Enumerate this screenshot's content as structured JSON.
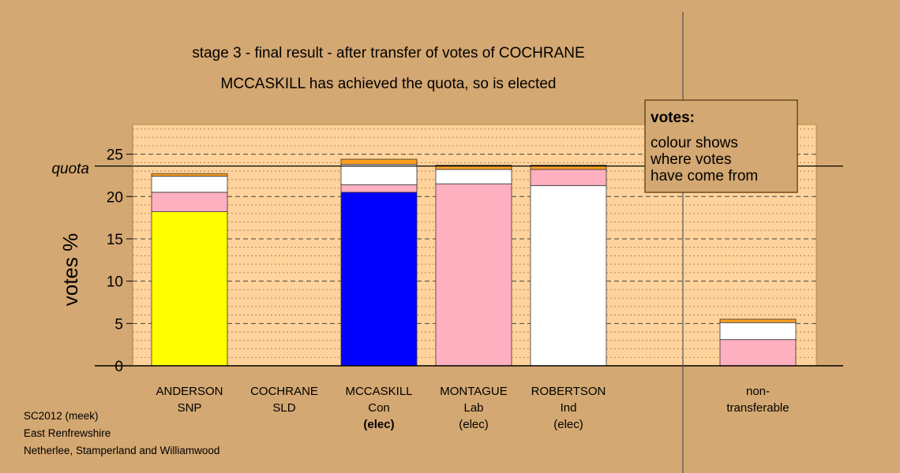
{
  "chart_data": {
    "type": "bar",
    "stacked": true,
    "title_line1": "stage 3 - final result - after transfer of votes of COCHRANE",
    "title_line2": "MCCASKILL has achieved the quota, so is elected",
    "ylabel": "votes %",
    "ylim": [
      0,
      28.5
    ],
    "yticks": [
      0,
      5,
      10,
      15,
      20,
      25
    ],
    "quota": 23.6,
    "quota_label": "quota",
    "grid": "dashed-horizontal",
    "legend": {
      "placement": "top-right",
      "title": "votes:",
      "lines": [
        "colour shows",
        "where votes",
        "have come from"
      ]
    },
    "categories": [
      {
        "name": "ANDERSON",
        "party": "SNP",
        "status": ""
      },
      {
        "name": "COCHRANE",
        "party": "SLD",
        "status": ""
      },
      {
        "name": "MCCASKILL",
        "party": "Con",
        "status": "(elec)"
      },
      {
        "name": "MONTAGUE",
        "party": "Lab",
        "status": "(elec)"
      },
      {
        "name": "ROBERTSON",
        "party": "Ind",
        "status": "(elec)"
      },
      {
        "name": "",
        "party": "",
        "status": ""
      },
      {
        "name": "non-",
        "party": "transferable",
        "status": ""
      }
    ],
    "stacks": [
      [
        {
          "value": 18.2,
          "color": "#ffff00"
        },
        {
          "value": 2.3,
          "color": "#ffb0c0"
        },
        {
          "value": 1.9,
          "color": "#ffffff"
        },
        {
          "value": 0.3,
          "color": "#ffa020"
        }
      ],
      [],
      [
        {
          "value": 20.5,
          "color": "#0000ff"
        },
        {
          "value": 0.9,
          "color": "#ffb0c0"
        },
        {
          "value": 2.4,
          "color": "#ffffff"
        },
        {
          "value": 0.6,
          "color": "#ffa020"
        }
      ],
      [
        {
          "value": 21.5,
          "color": "#ffb0c0"
        },
        {
          "value": 1.7,
          "color": "#ffffff"
        },
        {
          "value": 0.5,
          "color": "#ffa020"
        }
      ],
      [
        {
          "value": 21.3,
          "color": "#ffffff"
        },
        {
          "value": 1.9,
          "color": "#ffb0c0"
        },
        {
          "value": 0.5,
          "color": "#ffa020"
        }
      ],
      [],
      [
        {
          "value": 3.1,
          "color": "#ffb0c0"
        },
        {
          "value": 2.0,
          "color": "#ffffff"
        },
        {
          "value": 0.4,
          "color": "#ffa020"
        }
      ]
    ]
  },
  "footer": [
    "SC2012 (meek)",
    "East Renfrewshire",
    "Netherlee, Stamperland and Williamwood"
  ],
  "colors": {
    "background": "#d4a872",
    "plot_background": "#ffd39b"
  }
}
